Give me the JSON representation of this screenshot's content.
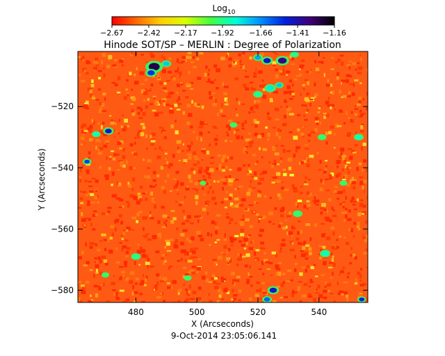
{
  "chart_data": {
    "type": "heatmap",
    "title": "Hinode SOT/SP – MERLIN : Degree of Polarization",
    "xlabel": "X (Arcseconds)",
    "ylabel": "Y (Arcseconds)",
    "timestamp": "9-Oct-2014 23:05:06.141",
    "colorbar": {
      "label": "Log",
      "label_subscript": "10",
      "range": [
        -2.67,
        -1.16
      ],
      "tick_values": [
        -2.67,
        -2.42,
        -2.17,
        -1.92,
        -1.66,
        -1.41,
        -1.16
      ],
      "tick_labels": [
        "−2.67",
        "−2.42",
        "−2.17",
        "−1.92",
        "−1.66",
        "−1.41",
        "−1.16"
      ],
      "colors": [
        "#ff0000",
        "#ff6a00",
        "#ffd000",
        "#d8ff00",
        "#40ff40",
        "#00ffd8",
        "#0090ff",
        "#0020e0",
        "#40007a",
        "#000000"
      ]
    },
    "xlim": [
      461,
      556
    ],
    "ylim": [
      -584,
      -502
    ],
    "x_ticks": [
      480,
      500,
      520,
      540
    ],
    "x_tick_labels": [
      "480",
      "500",
      "520",
      "540"
    ],
    "y_ticks": [
      -520,
      -540,
      -560,
      -580
    ],
    "y_tick_labels": [
      "−520",
      "−540",
      "−560",
      "−580"
    ],
    "field_background": "#ff5a14",
    "features": [
      {
        "x": 486,
        "y": -507,
        "r": 1.8,
        "level": -1.26
      },
      {
        "x": 485,
        "y": -509,
        "r": 1.2,
        "level": -1.52
      },
      {
        "x": 490,
        "y": -506,
        "r": 1.0,
        "level": -1.75
      },
      {
        "x": 471,
        "y": -528,
        "r": 1.1,
        "level": -1.45
      },
      {
        "x": 467,
        "y": -529,
        "r": 0.9,
        "level": -1.85
      },
      {
        "x": 464,
        "y": -538,
        "r": 0.9,
        "level": -1.55
      },
      {
        "x": 523,
        "y": -505,
        "r": 1.2,
        "level": -1.45
      },
      {
        "x": 528,
        "y": -505,
        "r": 1.4,
        "level": -1.35
      },
      {
        "x": 520,
        "y": -504,
        "r": 1.0,
        "level": -1.7
      },
      {
        "x": 532,
        "y": -503,
        "r": 0.9,
        "level": -1.9
      },
      {
        "x": 524,
        "y": -514,
        "r": 1.2,
        "level": -1.8
      },
      {
        "x": 520,
        "y": -516,
        "r": 1.0,
        "level": -1.9
      },
      {
        "x": 527,
        "y": -513,
        "r": 0.9,
        "level": -1.75
      },
      {
        "x": 525,
        "y": -580,
        "r": 1.2,
        "level": -1.45
      },
      {
        "x": 523,
        "y": -583,
        "r": 1.0,
        "level": -1.6
      },
      {
        "x": 554,
        "y": -583,
        "r": 0.9,
        "level": -1.5
      },
      {
        "x": 542,
        "y": -568,
        "r": 1.1,
        "level": -1.85
      },
      {
        "x": 553,
        "y": -530,
        "r": 1.0,
        "level": -1.85
      },
      {
        "x": 533,
        "y": -555,
        "r": 1.0,
        "level": -1.95
      },
      {
        "x": 480,
        "y": -569,
        "r": 1.0,
        "level": -1.9
      },
      {
        "x": 497,
        "y": -576,
        "r": 0.8,
        "level": -1.95
      },
      {
        "x": 512,
        "y": -526,
        "r": 0.8,
        "level": -1.95
      },
      {
        "x": 541,
        "y": -530,
        "r": 0.9,
        "level": -1.95
      },
      {
        "x": 470,
        "y": -575,
        "r": 0.8,
        "level": -1.95
      },
      {
        "x": 502,
        "y": -545,
        "r": 0.7,
        "level": -2.0
      },
      {
        "x": 548,
        "y": -545,
        "r": 0.8,
        "level": -1.95
      }
    ]
  }
}
